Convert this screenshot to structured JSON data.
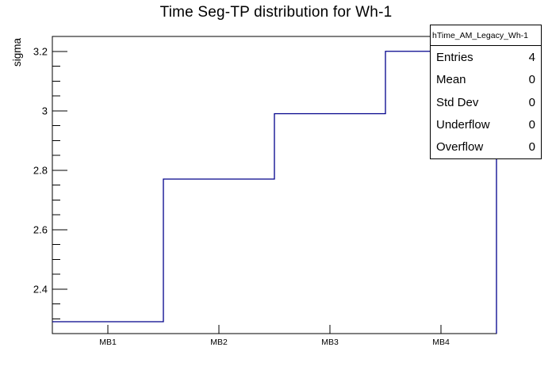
{
  "title": "Time Seg-TP distribution for Wh-1",
  "axes": {
    "y_label": "sigma",
    "y_tick_labels": [
      "3.2",
      "3",
      "2.8",
      "2.6",
      "2.4"
    ],
    "x_tick_labels": [
      "MB1",
      "MB2",
      "MB3",
      "MB4"
    ]
  },
  "stats_box": {
    "header": "hTime_AM_Legacy_Wh-1",
    "rows": [
      {
        "label": "Entries",
        "value": "4"
      },
      {
        "label": "Mean",
        "value": "0"
      },
      {
        "label": "Std Dev",
        "value": "0"
      },
      {
        "label": "Underflow",
        "value": "0"
      },
      {
        "label": "Overflow",
        "value": "0"
      }
    ]
  },
  "chart_data": {
    "type": "bar",
    "draw_style": "step-outline-histogram",
    "title": "Time Seg-TP distribution for Wh-1",
    "xlabel": "",
    "ylabel": "sigma",
    "categories": [
      "MB1",
      "MB2",
      "MB3",
      "MB4"
    ],
    "values": [
      2.29,
      2.77,
      2.99,
      3.2
    ],
    "ylim": [
      2.25,
      3.25
    ],
    "yticks_major": [
      3.2,
      3.0,
      2.8,
      2.6,
      2.4
    ],
    "ytick_minor_step": 0.05,
    "grid": false,
    "legend_position": "none",
    "line_color": "#00008b",
    "stats": {
      "entries": 4,
      "mean": 0,
      "std_dev": 0,
      "underflow": 0,
      "overflow": 0
    }
  },
  "colors": {
    "background": "#ffffff",
    "frame": "#000000",
    "text": "#000000",
    "histogram_line": "#00008b"
  }
}
